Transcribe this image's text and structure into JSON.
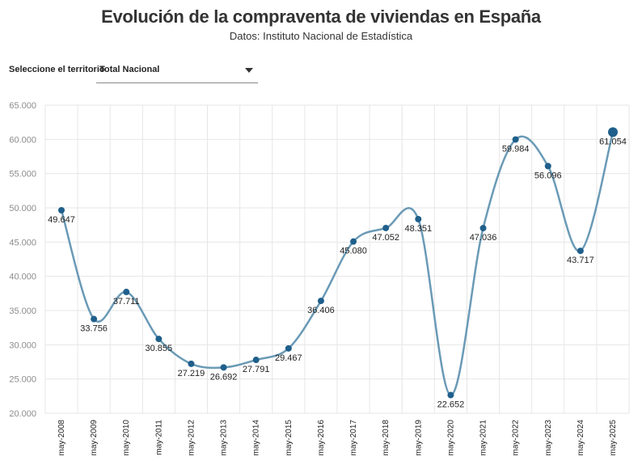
{
  "header": {
    "title": "Evolución de la compraventa de viviendas en España",
    "subtitle": "Datos: Instituto Nacional de Estadística"
  },
  "filter": {
    "label": "Seleccione el territorio",
    "selected": "Total Nacional"
  },
  "colors": {
    "line": "#6a9ab6",
    "point": "#1f5f8b",
    "grid": "#e6e6e6",
    "axis_text": "#8c8c8c"
  },
  "chart_data": {
    "type": "line",
    "categories": [
      "may-2008",
      "may-2009",
      "may-2010",
      "may-2011",
      "may-2012",
      "may-2013",
      "may-2014",
      "may-2015",
      "may-2016",
      "may-2017",
      "may-2018",
      "may-2019",
      "may-2020",
      "may-2021",
      "may-2022",
      "may-2023",
      "may-2024",
      "may-2025"
    ],
    "values": [
      49647,
      33756,
      37711,
      30855,
      27219,
      26692,
      27791,
      29467,
      36406,
      45080,
      47052,
      48351,
      22652,
      47036,
      59984,
      56096,
      43717,
      61054
    ],
    "value_labels": [
      "49.647",
      "33.756",
      "37.711",
      "30.855",
      "27.219",
      "26.692",
      "27.791",
      "29.467",
      "36.406",
      "45.080",
      "47.052",
      "48.351",
      "22.652",
      "47.036",
      "59.984",
      "56.096",
      "43.717",
      "61.054"
    ],
    "yticks": [
      20000,
      25000,
      30000,
      35000,
      40000,
      45000,
      50000,
      55000,
      60000,
      65000
    ],
    "ytick_labels": [
      "20.000",
      "25.000",
      "30.000",
      "35.000",
      "40.000",
      "45.000",
      "50.000",
      "55.000",
      "60.000",
      "65.000"
    ],
    "ylim": [
      20000,
      65000
    ],
    "grid": true,
    "smooth": true,
    "highlight_last": true
  }
}
